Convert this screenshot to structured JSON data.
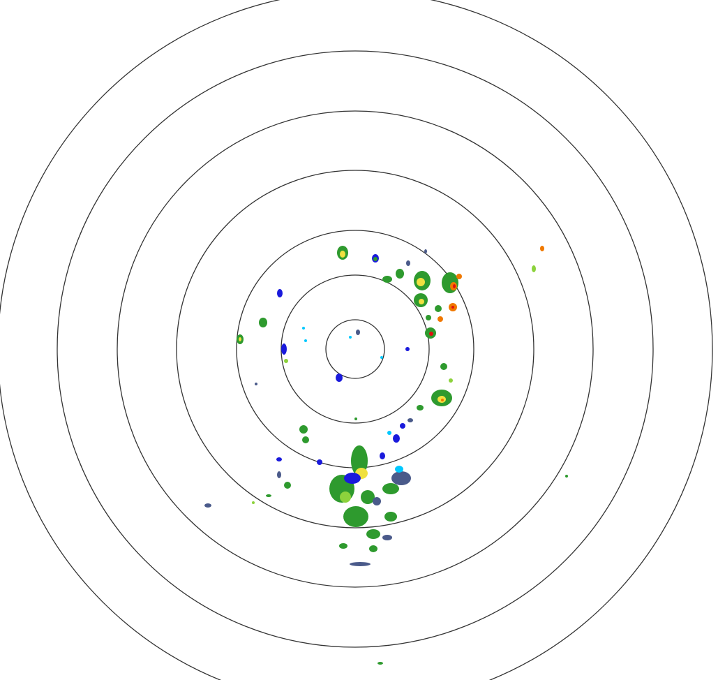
{
  "radar": {
    "ring_color": "#333333",
    "background": "#ffffff",
    "echo_palette": {
      "light": "#00c8ff",
      "weak": "#1a1adc",
      "muted": "#4a5a8a",
      "moderate": "#2e9a2e",
      "strong": "#8cd23c",
      "heavy": "#f0e040",
      "intense": "#f07800",
      "extreme": "#e01010"
    }
  }
}
